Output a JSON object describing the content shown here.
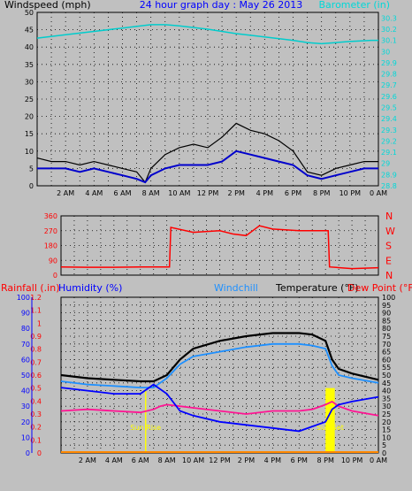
{
  "chart_data": [
    {
      "type": "line",
      "title": "24 hour graph day : May 26 2013",
      "left_label": "Windspeed (mph)",
      "right_label": "Barometer (in)",
      "left_ticks": [
        "0",
        "5",
        "10",
        "15",
        "20",
        "25",
        "30",
        "35",
        "40",
        "45",
        "50"
      ],
      "right_ticks": [
        "28.8",
        "28.9",
        "29",
        "29.1",
        "29.2",
        "29.3",
        "29.4",
        "29.5",
        "29.6",
        "29.7",
        "29.8",
        "29.9",
        "30",
        "30.1",
        "30.2",
        "30.3"
      ],
      "ylim_left": [
        0,
        50
      ],
      "ylim_right": [
        28.8,
        30.35
      ],
      "x_ticks": [
        "2 AM",
        "4 AM",
        "6 AM",
        "8 AM",
        "10 AM",
        "12 PM",
        "2 PM",
        "4 PM",
        "6 PM",
        "8 PM",
        "10 PM",
        "0 AM"
      ],
      "x_hours": [
        0,
        24
      ],
      "grid": true,
      "series": [
        {
          "name": "Barometer",
          "color": "#00cccc",
          "axis": "right",
          "x": [
            0,
            2,
            4,
            6,
            8,
            9,
            10,
            12,
            14,
            16,
            18,
            19,
            20,
            22,
            23.5,
            24
          ],
          "y": [
            30.12,
            30.15,
            30.18,
            30.21,
            30.24,
            30.24,
            30.23,
            30.2,
            30.16,
            30.13,
            30.1,
            30.08,
            30.07,
            30.09,
            30.1,
            30.1
          ]
        },
        {
          "name": "Gust",
          "color": "#000000",
          "axis": "left",
          "x": [
            0,
            1,
            2,
            3,
            4,
            5,
            6,
            7,
            7.6,
            8,
            9,
            10,
            11,
            12,
            13,
            14,
            15,
            16,
            17,
            18,
            19,
            20,
            21,
            22,
            23,
            24
          ],
          "y": [
            8,
            7,
            7,
            6,
            7,
            6,
            5,
            4,
            1,
            5,
            9,
            11,
            12,
            11,
            14,
            18,
            16,
            15,
            13,
            10,
            4,
            3,
            5,
            6,
            7,
            7
          ]
        },
        {
          "name": "Windspeed",
          "color": "#0000cc",
          "axis": "left",
          "x": [
            0,
            1,
            2,
            3,
            4,
            5,
            6,
            7,
            7.6,
            8,
            9,
            10,
            11,
            12,
            13,
            14,
            15,
            16,
            17,
            18,
            19,
            20,
            21,
            22,
            23,
            24
          ],
          "y": [
            5,
            5,
            5,
            4,
            5,
            4,
            3,
            2,
            1,
            3,
            5,
            6,
            6,
            6,
            7,
            10,
            9,
            8,
            7,
            6,
            3,
            2,
            3,
            4,
            5,
            5
          ]
        }
      ]
    },
    {
      "type": "line",
      "left_ticks": [
        "0",
        "90",
        "180",
        "270",
        "360"
      ],
      "right_ticks": [
        "N",
        "W",
        "S",
        "E",
        "N"
      ],
      "ylim": [
        0,
        360
      ],
      "grid": true,
      "series": [
        {
          "name": "Wind Direction",
          "color": "#ff0000",
          "x": [
            0,
            2,
            4,
            6,
            8.2,
            8.3,
            10,
            12,
            13,
            14,
            15,
            16,
            18,
            20.2,
            20.3,
            22,
            24
          ],
          "y": [
            50,
            48,
            48,
            50,
            50,
            290,
            260,
            270,
            250,
            240,
            300,
            280,
            270,
            270,
            50,
            40,
            45
          ]
        }
      ]
    },
    {
      "type": "line",
      "legend": {
        "rainfall": "Rainfall (.in)",
        "humidity": "Humidity (%)",
        "windchill": "Windchill",
        "temperature": "Temperature (°F)",
        "dewpoint": "Dew Point (°F)"
      },
      "rain_ticks": [
        "0",
        "0.1",
        "0.2",
        "0.3",
        "0.4",
        "0.5",
        "0.6",
        "0.7",
        "0.8",
        "0.9",
        "1",
        "1.1",
        "1.2"
      ],
      "humidity_ticks": [
        "0",
        "10",
        "20",
        "30",
        "40",
        "50",
        "60",
        "70",
        "80",
        "90",
        "100"
      ],
      "temp_ticks": [
        "0",
        "5",
        "10",
        "15",
        "20",
        "25",
        "30",
        "35",
        "40",
        "45",
        "50",
        "55",
        "60",
        "65",
        "70",
        "75",
        "80",
        "85",
        "90",
        "95",
        "100"
      ],
      "ylim_temp": [
        0,
        100
      ],
      "annotations": [
        {
          "text": "Sun Rise",
          "hour": 6.4
        },
        {
          "text": "Sun Set",
          "hour": 20.35
        }
      ],
      "grid": true,
      "series": [
        {
          "name": "Temperature",
          "color": "#000000",
          "x": [
            0,
            2,
            4,
            6,
            7,
            8,
            9,
            10,
            12,
            14,
            16,
            18,
            19,
            20,
            20.5,
            21,
            22,
            24
          ],
          "y": [
            50,
            48,
            47,
            46,
            46,
            50,
            60,
            67,
            72,
            75,
            77,
            77,
            76,
            72,
            60,
            54,
            51,
            47
          ]
        },
        {
          "name": "Windchill",
          "color": "#1e90ff",
          "x": [
            0,
            2,
            4,
            6,
            7,
            8,
            9,
            10,
            12,
            14,
            16,
            18,
            19,
            20,
            20.5,
            21,
            22,
            24
          ],
          "y": [
            46,
            44,
            43,
            42,
            42,
            48,
            57,
            62,
            65,
            68,
            70,
            70,
            69,
            67,
            56,
            50,
            48,
            45
          ]
        },
        {
          "name": "Dew Point",
          "color": "#ff1493",
          "x": [
            0,
            2,
            4,
            6,
            7,
            7.5,
            8,
            9,
            10,
            12,
            14,
            16,
            18,
            19,
            20,
            20.5,
            21,
            22,
            24
          ],
          "y": [
            27,
            28,
            27,
            26,
            28,
            30,
            31,
            30,
            29,
            27,
            25,
            27,
            27,
            28,
            31,
            33,
            30,
            27,
            24
          ]
        },
        {
          "name": "Humidity",
          "color": "#0000ff",
          "x": [
            0,
            2,
            4,
            6,
            7,
            8,
            9,
            10,
            12,
            14,
            16,
            18,
            19,
            20,
            20.5,
            21,
            22,
            24
          ],
          "y": [
            42,
            40,
            38,
            38,
            44,
            38,
            27,
            24,
            20,
            18,
            16,
            14,
            17,
            20,
            28,
            31,
            33,
            36
          ]
        },
        {
          "name": "Rainfall",
          "color": "#ffff00",
          "x": [
            20,
            20.7
          ],
          "y": [
            0.5,
            0.5
          ]
        }
      ]
    }
  ]
}
